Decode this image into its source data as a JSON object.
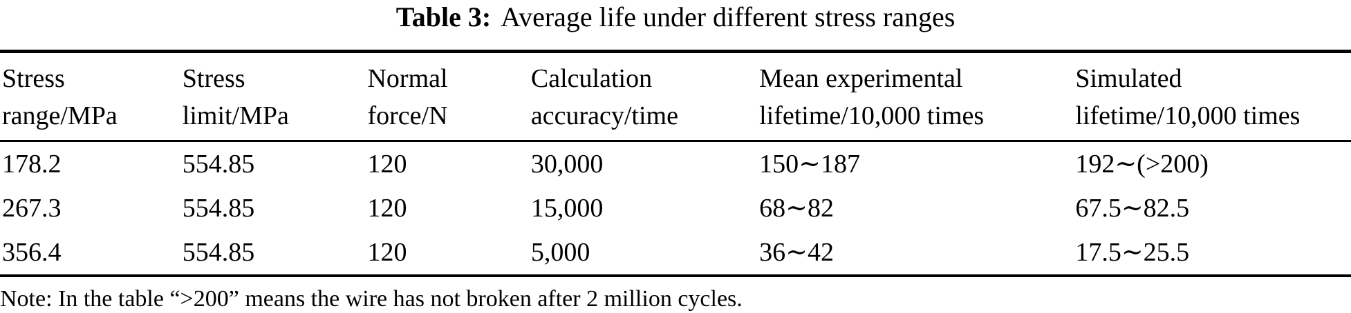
{
  "page": {
    "background_color": "#ffffff",
    "text_color": "#000000",
    "rule_color": "#000000"
  },
  "caption": {
    "label": "Table 3:",
    "text": "Average life under different stress ranges"
  },
  "table": {
    "columns": [
      {
        "line1": "Stress",
        "line2": "range/MPa"
      },
      {
        "line1": "Stress",
        "line2": "limit/MPa"
      },
      {
        "line1": "Normal",
        "line2": "force/N"
      },
      {
        "line1": "Calculation",
        "line2": "accuracy/time"
      },
      {
        "line1": "Mean experimental",
        "line2": "lifetime/10,000 times"
      },
      {
        "line1": "Simulated",
        "line2": "lifetime/10,000 times"
      }
    ],
    "rows": [
      [
        "178.2",
        "554.85",
        "120",
        "30,000",
        "150∼187",
        "192∼(>200)"
      ],
      [
        "267.3",
        "554.85",
        "120",
        "15,000",
        "68∼82",
        "67.5∼82.5"
      ],
      [
        "356.4",
        "554.85",
        "120",
        "5,000",
        "36∼42",
        "17.5∼25.5"
      ]
    ]
  },
  "note": {
    "text": "Note: In the table “>200” means the wire has not broken after 2 million cycles."
  }
}
